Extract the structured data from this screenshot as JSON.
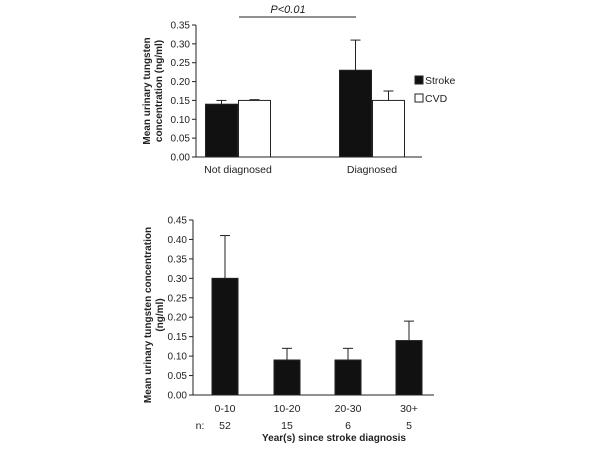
{
  "chart_data": [
    {
      "type": "bar",
      "categories": [
        "Not diagnosed",
        "Diagnosed"
      ],
      "series": [
        {
          "name": "Stroke",
          "color": "#111111",
          "values": [
            0.14,
            0.23
          ],
          "errors": [
            0.01,
            0.08
          ]
        },
        {
          "name": "CVD",
          "color": "#ffffff",
          "values": [
            0.15,
            0.15
          ],
          "errors": [
            0.002,
            0.025
          ]
        }
      ],
      "ylabel_line1": "Mean urinary tungsten",
      "ylabel_line2": "concentration (ng/ml)",
      "ylim": [
        0,
        0.35
      ],
      "yticks": [
        "0.00",
        "0.05",
        "0.10",
        "0.15",
        "0.20",
        "0.25",
        "0.30",
        "0.35"
      ],
      "annotation": "P<0.01",
      "legend_position": "right"
    },
    {
      "type": "bar",
      "categories": [
        "0-10",
        "10-20",
        "20-30",
        "30+"
      ],
      "series": [
        {
          "name": "Stroke",
          "color": "#111111",
          "values": [
            0.3,
            0.09,
            0.09,
            0.14
          ],
          "errors": [
            0.11,
            0.03,
            0.03,
            0.05
          ]
        }
      ],
      "n_label": "n:",
      "n_values": [
        "52",
        "15",
        "6",
        "5"
      ],
      "ylabel_line1": "Mean urinary tungsten concentration",
      "ylabel_line2": "(ng/ml)",
      "xlabel": "Year(s) since stroke diagnosis",
      "ylim": [
        0,
        0.45
      ],
      "yticks": [
        "0.00",
        "0.05",
        "0.10",
        "0.15",
        "0.20",
        "0.25",
        "0.30",
        "0.35",
        "0.40",
        "0.45"
      ]
    }
  ]
}
